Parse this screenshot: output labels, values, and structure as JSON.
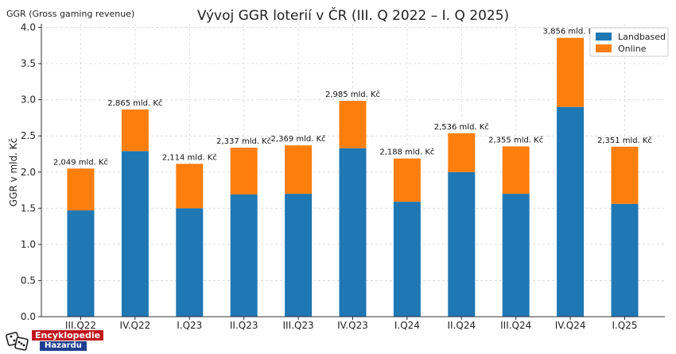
{
  "chart_data": {
    "type": "bar",
    "stacked": true,
    "title": "Vývoj GGR loterií v ČR (III. Q 2022 – I. Q 2025)",
    "corner_label": "GGR (Gross gaming revenue)",
    "xlabel": "",
    "ylabel": "GGR v mld. Kč",
    "ylim": [
      0,
      4.05
    ],
    "yticks": [
      0.0,
      0.5,
      1.0,
      1.5,
      2.0,
      2.5,
      3.0,
      3.5,
      4.0
    ],
    "ytick_labels": [
      "0.0",
      "0.5",
      "1.0",
      "1.5",
      "2.0",
      "2.5",
      "3.0",
      "3.5",
      "4.0"
    ],
    "grid": true,
    "legend_position": "top-right",
    "categories": [
      "III.Q22",
      "IV.Q22",
      "I.Q23",
      "II.Q23",
      "III.Q23",
      "IV.Q23",
      "I.Q24",
      "II.Q24",
      "III.Q24",
      "IV.Q24",
      "I.Q25"
    ],
    "series": [
      {
        "name": "Landbased",
        "color": "#1f77b4",
        "values": [
          1.47,
          2.29,
          1.5,
          1.69,
          1.7,
          2.33,
          1.59,
          2.0,
          1.7,
          2.9,
          1.56
        ]
      },
      {
        "name": "Online",
        "color": "#ff7f0e",
        "values": [
          0.579,
          0.575,
          0.614,
          0.647,
          0.669,
          0.655,
          0.598,
          0.536,
          0.655,
          0.956,
          0.791
        ]
      }
    ],
    "totals": [
      2.049,
      2.865,
      2.114,
      2.337,
      2.369,
      2.985,
      2.188,
      2.536,
      2.355,
      3.856,
      2.351
    ],
    "total_labels": [
      "2,049 mld. Kč",
      "2,865 mld. Kč",
      "2,114 mld. Kč",
      "2,337 mld. Kč",
      "2,369 mld. Kč",
      "2,985 mld. Kč",
      "2,188 mld. Kč",
      "2,536 mld. Kč",
      "2,355 mld. Kč",
      "3,856 mld. Kč",
      "2,351 mld. Kč"
    ]
  },
  "logo": {
    "line1": "Encyklopedie",
    "line2": "Hazardu"
  }
}
